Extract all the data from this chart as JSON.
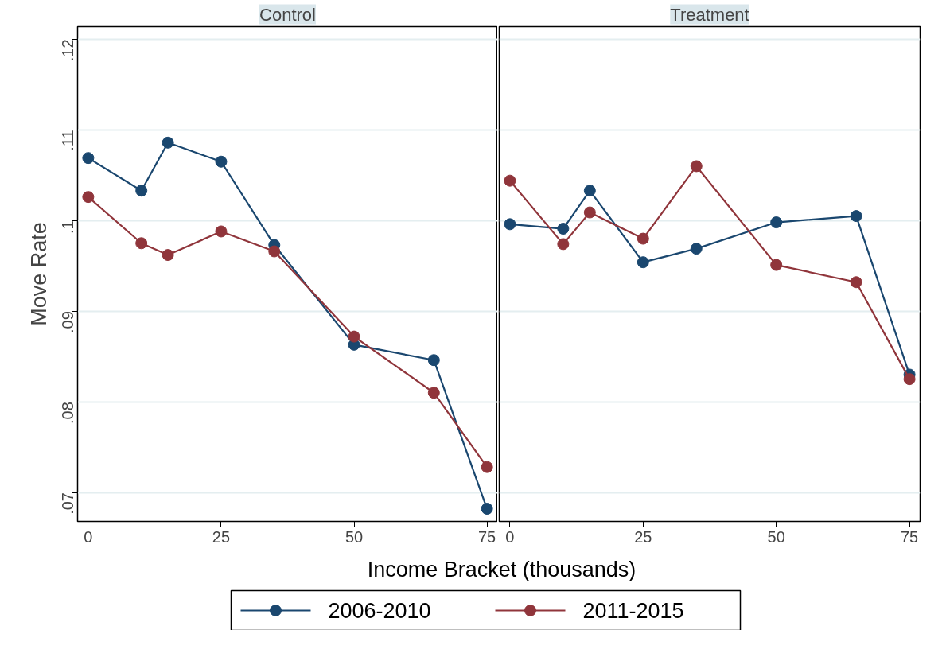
{
  "chart_data": [
    {
      "type": "line",
      "title": "Control",
      "ylabel": "Move Rate",
      "xlabel": "Income Bracket (thousands)",
      "x": [
        0,
        10,
        15,
        25,
        35,
        50,
        65,
        75
      ],
      "xlim": [
        -2,
        77
      ],
      "xticks": [
        0,
        25,
        50,
        75
      ],
      "ylim": [
        0.0668,
        0.1214
      ],
      "yticks": [
        {
          "value": 0.07,
          "label": ".07"
        },
        {
          "value": 0.08,
          "label": ".08"
        },
        {
          "value": 0.09,
          "label": ".09"
        },
        {
          "value": 0.1,
          "label": ".1"
        },
        {
          "value": 0.11,
          "label": ".11"
        },
        {
          "value": 0.12,
          "label": ".12"
        }
      ],
      "grid": "y",
      "marker": "circle",
      "legend": "bottom",
      "series": [
        {
          "name": "2006-2010",
          "color": "#1a476f",
          "values": [
            0.1069,
            0.1033,
            0.1086,
            0.1065,
            0.0973,
            0.0863,
            0.0846,
            0.0682
          ]
        },
        {
          "name": "2011-2015",
          "color": "#90353b",
          "values": [
            0.1026,
            0.0975,
            0.0962,
            0.0988,
            0.0966,
            0.0872,
            0.081,
            0.0728
          ]
        }
      ]
    },
    {
      "type": "line",
      "title": "Treatment",
      "x": [
        0,
        10,
        15,
        25,
        35,
        50,
        65,
        75
      ],
      "xlim": [
        -2,
        77
      ],
      "xticks": [
        0,
        25,
        50,
        75
      ],
      "ylim": [
        0.0668,
        0.1214
      ],
      "yticks": [
        0.07,
        0.08,
        0.09,
        0.1,
        0.11,
        0.12
      ],
      "grid": "y",
      "marker": "circle",
      "tick_labels": "x",
      "series": [
        {
          "color": "#1a476f",
          "values": [
            0.0996,
            0.0991,
            0.1033,
            0.0954,
            0.0969,
            0.0998,
            0.1005,
            0.083
          ]
        },
        {
          "color": "#90353b",
          "values": [
            0.1044,
            0.0974,
            0.1009,
            0.098,
            0.106,
            0.0951,
            0.0932,
            0.0825
          ]
        }
      ]
    }
  ]
}
